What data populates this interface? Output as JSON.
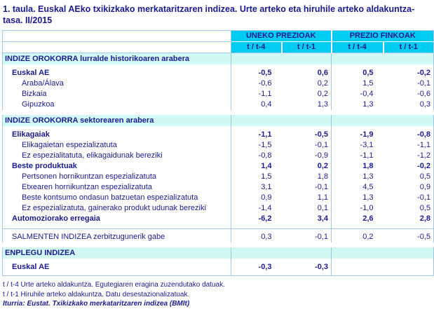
{
  "page": {
    "title": "1. taula. Euskal AEko txikizkako merkataritzaren indizea. Urte arteko eta hiruhile arteko aldakuntza-tasa. II/2015"
  },
  "colors": {
    "header_bg": "#00CCF2",
    "section_band_cyan": "#A6F2EA",
    "text_navy": "#1A1A8F",
    "border_blue": "#A3C6E8"
  },
  "table": {
    "group_headers": [
      "UNEKO PREZIOAK",
      "PREZIO FINKOAK"
    ],
    "sub_headers": [
      "t / t-4",
      "t / t-1",
      "t / t-4",
      "t / t-1"
    ],
    "rows": [
      {
        "type": "section",
        "label": "INDIZE OROKORRA lurralde historikoaren arabera"
      },
      {
        "type": "data",
        "label": "Euskal AE",
        "bold": true,
        "indent": 1,
        "values": [
          "-0,5",
          "0,6",
          "0,5",
          "-0,2"
        ]
      },
      {
        "type": "data",
        "label": "Araba/Álava",
        "bold": false,
        "indent": 2,
        "values": [
          "-0,6",
          "0,2",
          "1,5",
          "-0,1"
        ]
      },
      {
        "type": "data",
        "label": "Bizkaia",
        "bold": false,
        "indent": 2,
        "values": [
          "-1,1",
          "0,2",
          "-0,4",
          "-0,6"
        ]
      },
      {
        "type": "data",
        "label": "Gipuzkoa",
        "bold": false,
        "indent": 2,
        "values": [
          "0,4",
          "1,3",
          "1,3",
          "0,3"
        ]
      },
      {
        "type": "section",
        "label": "INDIZE OROKORRA sektorearen arabera"
      },
      {
        "type": "data",
        "label": "Elikagaiak",
        "bold": true,
        "indent": 1,
        "values": [
          "-1,1",
          "-0,5",
          "-1,9",
          "-0,8"
        ]
      },
      {
        "type": "data",
        "label": "Elikagaietan espezializatuta",
        "bold": false,
        "indent": 2,
        "values": [
          "-1,5",
          "-0,1",
          "-3,1",
          "-1,1"
        ]
      },
      {
        "type": "data",
        "label": "Ez espezialitatuta, elikagaidunak bereziki",
        "bold": false,
        "indent": 2,
        "values": [
          "-0,8",
          "-0,9",
          "-1,1",
          "-1,2"
        ]
      },
      {
        "type": "data",
        "label": "Beste produktuak",
        "bold": true,
        "indent": 1,
        "values": [
          "1,4",
          "0,2",
          "1,8",
          "-0,2"
        ]
      },
      {
        "type": "data",
        "label": "Pertsonen hornikuntzan espezializatuta",
        "bold": false,
        "indent": 2,
        "values": [
          "1,5",
          "1,8",
          "1,3",
          "0,5"
        ]
      },
      {
        "type": "data",
        "label": "Etxearen hornikuntzan espezializatuta",
        "bold": false,
        "indent": 2,
        "values": [
          "3,1",
          "-0,1",
          "4,5",
          "0,9"
        ]
      },
      {
        "type": "data",
        "label": "Beste kontsumo ondasun batzuetan espezializatuta",
        "bold": false,
        "indent": 2,
        "values": [
          "0,9",
          "1,1",
          "1,3",
          "-0,1"
        ]
      },
      {
        "type": "data",
        "label": "Ez espezializatuta, gainerako produkt udunak bereziki",
        "bold": false,
        "indent": 2,
        "values": [
          "-1,4",
          "0,1",
          "-1,0",
          "0,5"
        ]
      },
      {
        "type": "data",
        "label": "Automoziorako erregaia",
        "bold": true,
        "indent": 1,
        "gap_below": true,
        "values": [
          "-6,2",
          "3,4",
          "2,6",
          "2,8"
        ]
      },
      {
        "type": "data",
        "label": "SALMENTEN INDIZEA zerbitzugunerik gabe",
        "bold": false,
        "indent": 1,
        "rule_above": true,
        "values": [
          "0,3",
          "-0,1",
          "0,2",
          "-0,5"
        ]
      },
      {
        "type": "section",
        "label": "ENPLEGU INDIZEA"
      },
      {
        "type": "data",
        "label": "Euskal AE",
        "bold": true,
        "indent": 1,
        "values": [
          "-0,3",
          "-0,3",
          "",
          ""
        ]
      }
    ]
  },
  "footnotes": [
    "t / t-4 Urte arteko aldakuntza. Egutegiaren eragina zuzendutako datuak.",
    "t / t-1 Hiruhile arteko aldakuntza. Datu desestazionalizatuak.",
    "Iturria: Eustat. Txikizkako merkataritzaren indizea (BMIt)"
  ]
}
